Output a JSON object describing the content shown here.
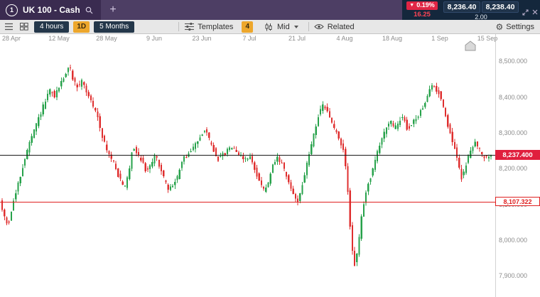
{
  "top_bar": {
    "tab_number": "1",
    "instrument_name": "UK 100 - Cash",
    "add_tab": "+",
    "change_direction": "▼",
    "change_percent": "0.19%",
    "change_points": "16.25",
    "sell_price": "8,236.40",
    "buy_price": "8,238.40",
    "spread": "2.00"
  },
  "toolbar": {
    "interval": "4 hours",
    "timeframe_badge": "1D",
    "date_range": "5 Months",
    "templates": "Templates",
    "indicator_count": "4",
    "price_source": "Mid",
    "related": "Related",
    "settings": "Settings"
  },
  "colors": {
    "top_bar_purple": "#4d3e64",
    "tab_purple": "#3a2b50",
    "dark_panel": "#14273c",
    "price_box": "#20344b",
    "red_badge": "#e02545",
    "toolbar_bg": "#e7e7e7",
    "dark_button": "#24374a",
    "amber": "#eda72c",
    "current_price_label_bg": "#e01f3d",
    "chart_up": "#27a24b",
    "chart_down": "#df2f2f"
  },
  "chart_data": {
    "type": "candlestick",
    "instrument": "UK 100 - Cash",
    "interval": "4 hours",
    "visible_period": "5 Months",
    "x_axis_dates": [
      "28 Apr",
      "12 May",
      "28 May",
      "9 Jun",
      "23 Jun",
      "7 Jul",
      "21 Jul",
      "4 Aug",
      "18 Aug",
      "1 Sep",
      "15 Sep"
    ],
    "y_axis": [
      {
        "label": "8,500.000",
        "value": 8500
      },
      {
        "label": "8,400.000",
        "value": 8400
      },
      {
        "label": "8,300.000",
        "value": 8300
      },
      {
        "label": "8,200.000",
        "value": 8200
      },
      {
        "label": "8,100.000",
        "value": 8100
      },
      {
        "label": "8,000.000",
        "value": 8000
      },
      {
        "label": "7,900.000",
        "value": 7900
      }
    ],
    "y_range": {
      "top": 8548,
      "bottom": 7841
    },
    "current_price": {
      "label": "8,237.400",
      "value": 8237.4
    },
    "horizontal_line": {
      "label": "8,107.322",
      "value": 8107.322
    },
    "up_color": "#27a24b",
    "down_color": "#df2f2f",
    "price_path": [
      [
        0,
        8118
      ],
      [
        7,
        8072
      ],
      [
        13,
        8040
      ],
      [
        19,
        8092
      ],
      [
        27,
        8150
      ],
      [
        34,
        8205
      ],
      [
        42,
        8262
      ],
      [
        50,
        8305
      ],
      [
        58,
        8348
      ],
      [
        66,
        8390
      ],
      [
        73,
        8418
      ],
      [
        79,
        8400
      ],
      [
        87,
        8437
      ],
      [
        94,
        8465
      ],
      [
        100,
        8485
      ],
      [
        106,
        8442
      ],
      [
        112,
        8428
      ],
      [
        118,
        8448
      ],
      [
        126,
        8402
      ],
      [
        134,
        8372
      ],
      [
        140,
        8340
      ],
      [
        146,
        8292
      ],
      [
        152,
        8252
      ],
      [
        158,
        8230
      ],
      [
        164,
        8210
      ],
      [
        170,
        8172
      ],
      [
        177,
        8143
      ],
      [
        183,
        8185
      ],
      [
        189,
        8266
      ],
      [
        195,
        8242
      ],
      [
        201,
        8226
      ],
      [
        207,
        8194
      ],
      [
        214,
        8212
      ],
      [
        221,
        8236
      ],
      [
        228,
        8202
      ],
      [
        234,
        8162
      ],
      [
        240,
        8140
      ],
      [
        246,
        8156
      ],
      [
        252,
        8176
      ],
      [
        258,
        8220
      ],
      [
        264,
        8236
      ],
      [
        271,
        8248
      ],
      [
        278,
        8270
      ],
      [
        284,
        8292
      ],
      [
        291,
        8314
      ],
      [
        297,
        8276
      ],
      [
        303,
        8250
      ],
      [
        309,
        8226
      ],
      [
        315,
        8236
      ],
      [
        321,
        8246
      ],
      [
        327,
        8266
      ],
      [
        333,
        8254
      ],
      [
        340,
        8236
      ],
      [
        347,
        8226
      ],
      [
        353,
        8236
      ],
      [
        360,
        8200
      ],
      [
        367,
        8168
      ],
      [
        374,
        8136
      ],
      [
        380,
        8162
      ],
      [
        386,
        8206
      ],
      [
        392,
        8230
      ],
      [
        398,
        8214
      ],
      [
        404,
        8184
      ],
      [
        410,
        8150
      ],
      [
        416,
        8124
      ],
      [
        421,
        8108
      ],
      [
        427,
        8152
      ],
      [
        433,
        8202
      ],
      [
        439,
        8256
      ],
      [
        445,
        8310
      ],
      [
        451,
        8352
      ],
      [
        457,
        8376
      ],
      [
        463,
        8358
      ],
      [
        469,
        8330
      ],
      [
        475,
        8300
      ],
      [
        481,
        8274
      ],
      [
        487,
        8238
      ],
      [
        491,
        8150
      ],
      [
        495,
        8030
      ],
      [
        499,
        7952
      ],
      [
        502,
        7926
      ],
      [
        506,
        7978
      ],
      [
        510,
        8052
      ],
      [
        515,
        8112
      ],
      [
        521,
        8162
      ],
      [
        527,
        8202
      ],
      [
        533,
        8242
      ],
      [
        539,
        8282
      ],
      [
        545,
        8316
      ],
      [
        551,
        8332
      ],
      [
        557,
        8310
      ],
      [
        563,
        8330
      ],
      [
        569,
        8346
      ],
      [
        575,
        8312
      ],
      [
        581,
        8322
      ],
      [
        587,
        8336
      ],
      [
        593,
        8356
      ],
      [
        599,
        8382
      ],
      [
        605,
        8408
      ],
      [
        611,
        8436
      ],
      [
        616,
        8420
      ],
      [
        622,
        8404
      ],
      [
        628,
        8358
      ],
      [
        634,
        8308
      ],
      [
        640,
        8268
      ],
      [
        646,
        8222
      ],
      [
        651,
        8172
      ],
      [
        656,
        8196
      ],
      [
        661,
        8232
      ],
      [
        666,
        8262
      ],
      [
        671,
        8276
      ],
      [
        676,
        8254
      ],
      [
        681,
        8236
      ],
      [
        686,
        8230
      ],
      [
        696,
        8238
      ]
    ]
  }
}
